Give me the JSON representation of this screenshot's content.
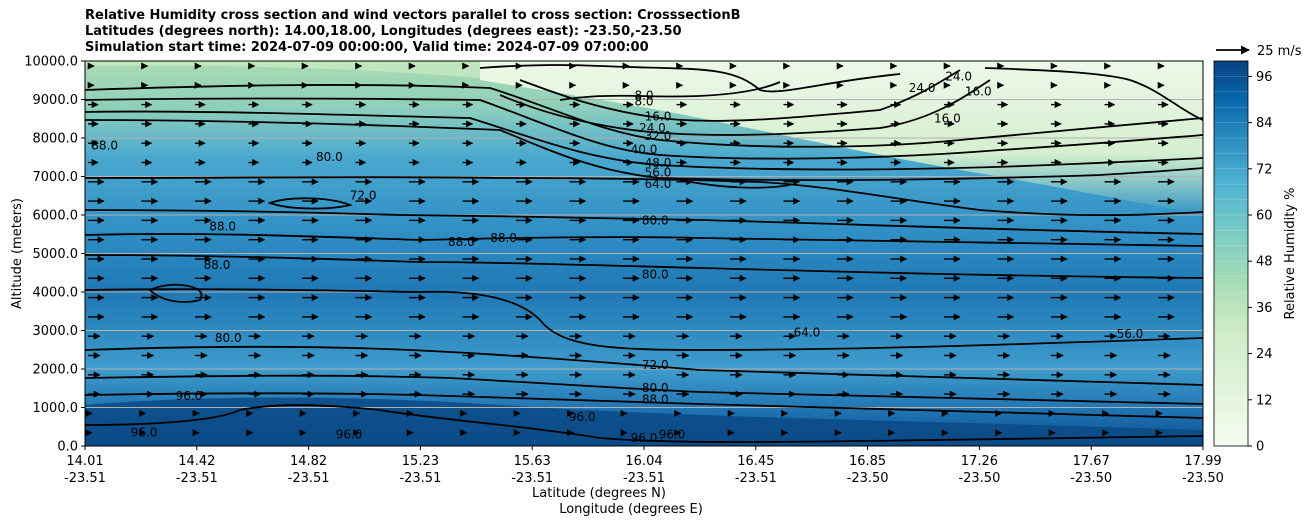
{
  "header": {
    "title_line1": "Relative Humidity cross section and wind vectors parallel to cross section: CrosssectionB",
    "title_line2": "Latitudes (degrees north): 14.00,18.00, Longitudes (degrees east): -23.50,-23.50",
    "title_line3": "Simulation start time: 2024-07-09 00:00:00, Valid time: 2024-07-09 07:00:00"
  },
  "chart_data": {
    "type": "heatmap",
    "title": "Relative Humidity cross section and wind vectors parallel to cross section: CrosssectionB",
    "ylabel": "Altitude (meters)",
    "xlabel_lat": "Latitude (degrees N)",
    "xlabel_lon": "Longitude (degrees E)",
    "ylim": [
      0,
      10000
    ],
    "yticks": [
      "0.0",
      "1000.0",
      "2000.0",
      "3000.0",
      "4000.0",
      "5000.0",
      "6000.0",
      "7000.0",
      "8000.0",
      "9000.0",
      "10000.0"
    ],
    "xticks": [
      {
        "lat": "14.01",
        "lon": "-23.51"
      },
      {
        "lat": "14.42",
        "lon": "-23.51"
      },
      {
        "lat": "14.82",
        "lon": "-23.51"
      },
      {
        "lat": "15.23",
        "lon": "-23.51"
      },
      {
        "lat": "15.63",
        "lon": "-23.51"
      },
      {
        "lat": "16.04",
        "lon": "-23.51"
      },
      {
        "lat": "16.45",
        "lon": "-23.51"
      },
      {
        "lat": "16.85",
        "lon": "-23.50"
      },
      {
        "lat": "17.26",
        "lon": "-23.50"
      },
      {
        "lat": "17.67",
        "lon": "-23.50"
      },
      {
        "lat": "17.99",
        "lon": "-23.50"
      }
    ],
    "grid": "horizontal",
    "colorbar": {
      "label": "Relative Humidity %",
      "ticks": [
        "0",
        "12",
        "24",
        "36",
        "48",
        "60",
        "72",
        "84",
        "96"
      ],
      "min": 0,
      "max": 100
    },
    "quiver_key": "25 m/s",
    "contour_labels": [
      {
        "text": "8.0",
        "lat": 16.0,
        "alt": 9000
      },
      {
        "text": "8.0",
        "lat": 16.0,
        "alt": 8850
      },
      {
        "text": "16.0",
        "lat": 16.05,
        "alt": 8450
      },
      {
        "text": "24.0",
        "lat": 16.03,
        "alt": 8150
      },
      {
        "text": "32.0",
        "lat": 16.05,
        "alt": 7950
      },
      {
        "text": "40.0",
        "lat": 16.0,
        "alt": 7600
      },
      {
        "text": "48.0",
        "lat": 16.05,
        "alt": 7250
      },
      {
        "text": "56.0",
        "lat": 16.05,
        "alt": 7000
      },
      {
        "text": "64.0",
        "lat": 16.05,
        "alt": 6700
      },
      {
        "text": "80.0",
        "lat": 16.04,
        "alt": 5750
      },
      {
        "text": "80.0",
        "lat": 16.04,
        "alt": 4350
      },
      {
        "text": "72.0",
        "lat": 16.04,
        "alt": 2000
      },
      {
        "text": "80.0",
        "lat": 16.04,
        "alt": 1400
      },
      {
        "text": "88.0",
        "lat": 16.04,
        "alt": 1100
      },
      {
        "text": "96.0",
        "lat": 16.0,
        "alt": 100
      },
      {
        "text": "96.0",
        "lat": 16.1,
        "alt": 200
      },
      {
        "text": "88.0",
        "lat": 14.08,
        "alt": 7700
      },
      {
        "text": "80.0",
        "lat": 14.88,
        "alt": 7400
      },
      {
        "text": "72.0",
        "lat": 15.0,
        "alt": 6400
      },
      {
        "text": "88.0",
        "lat": 14.5,
        "alt": 5600
      },
      {
        "text": "88.0",
        "lat": 14.48,
        "alt": 4600
      },
      {
        "text": "80.0",
        "lat": 14.52,
        "alt": 2700
      },
      {
        "text": "88.0",
        "lat": 15.35,
        "alt": 5200
      },
      {
        "text": "88.0",
        "lat": 15.5,
        "alt": 5300
      },
      {
        "text": "96.0",
        "lat": 14.38,
        "alt": 1200
      },
      {
        "text": "96.0",
        "lat": 14.22,
        "alt": 250
      },
      {
        "text": "96.0",
        "lat": 14.95,
        "alt": 200
      },
      {
        "text": "96.0",
        "lat": 15.78,
        "alt": 650
      },
      {
        "text": "64.0",
        "lat": 16.58,
        "alt": 2850
      },
      {
        "text": "56.0",
        "lat": 17.73,
        "alt": 2800
      },
      {
        "text": "24.0",
        "lat": 16.99,
        "alt": 9200
      },
      {
        "text": "16.0",
        "lat": 17.08,
        "alt": 8400
      },
      {
        "text": "24.0",
        "lat": 17.12,
        "alt": 9500
      },
      {
        "text": "16.0",
        "lat": 17.19,
        "alt": 9100
      }
    ]
  }
}
